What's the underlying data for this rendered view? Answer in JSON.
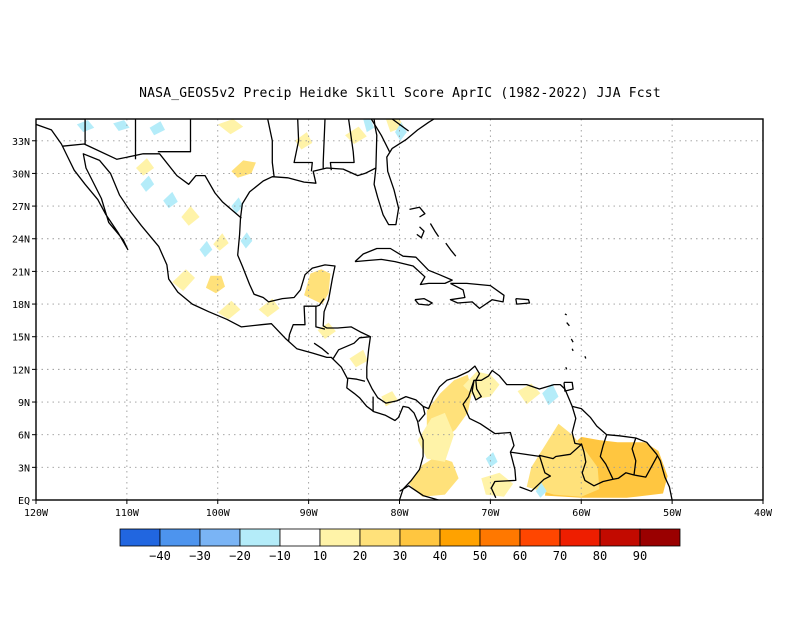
{
  "title": "NASA_GEOS5v2 Precip Heidke Skill Score AprIC (1982-2022) JJA Fcst",
  "map": {
    "lon_range": [
      -120,
      -40
    ],
    "lat_range": [
      0,
      35
    ],
    "x_ticks": [
      {
        "lon": -120,
        "label": "120W"
      },
      {
        "lon": -110,
        "label": "110W"
      },
      {
        "lon": -100,
        "label": "100W"
      },
      {
        "lon": -90,
        "label": "90W"
      },
      {
        "lon": -80,
        "label": "80W"
      },
      {
        "lon": -70,
        "label": "70W"
      },
      {
        "lon": -60,
        "label": "60W"
      },
      {
        "lon": -50,
        "label": "50W"
      },
      {
        "lon": -40,
        "label": "40W"
      }
    ],
    "y_ticks": [
      {
        "lat": 0,
        "label": "EQ"
      },
      {
        "lat": 3,
        "label": "3N"
      },
      {
        "lat": 6,
        "label": "6N"
      },
      {
        "lat": 9,
        "label": "9N"
      },
      {
        "lat": 12,
        "label": "12N"
      },
      {
        "lat": 15,
        "label": "15N"
      },
      {
        "lat": 18,
        "label": "18N"
      },
      {
        "lat": 21,
        "label": "21N"
      },
      {
        "lat": 24,
        "label": "24N"
      },
      {
        "lat": 27,
        "label": "27N"
      },
      {
        "lat": 30,
        "label": "30N"
      },
      {
        "lat": 33,
        "label": "33N"
      }
    ],
    "grid": true
  },
  "colorbar": {
    "colors": [
      "#2166e0",
      "#4d94ee",
      "#7ab4f5",
      "#b4ecf9",
      "#ffffff",
      "#fff3a8",
      "#ffe17a",
      "#ffc640",
      "#ffa200",
      "#ff7800",
      "#ff4600",
      "#ee1e00",
      "#c20a00",
      "#9a0000"
    ],
    "labels": [
      "-40",
      "-30",
      "-20",
      "-10",
      "10",
      "20",
      "30",
      "40",
      "50",
      "60",
      "70",
      "80",
      "90"
    ]
  },
  "skill_areas": [
    {
      "level": 40,
      "color": "#ff9a00",
      "pts": [
        [
          -58,
          1.5
        ],
        [
          -56,
          0.6
        ],
        [
          -53,
          0.8
        ],
        [
          -51.5,
          1.8
        ],
        [
          -51.8,
          3.2
        ],
        [
          -53,
          4.6
        ],
        [
          -55,
          5
        ],
        [
          -57,
          4.8
        ],
        [
          -58.5,
          3.5
        ]
      ]
    },
    {
      "level": 30,
      "color": "#ffc640",
      "pts": [
        [
          -64,
          0.4
        ],
        [
          -60,
          0.2
        ],
        [
          -55,
          0.2
        ],
        [
          -51,
          0.6
        ],
        [
          -50.5,
          2.2
        ],
        [
          -51.5,
          4.5
        ],
        [
          -53,
          5.3
        ],
        [
          -56,
          5.3
        ],
        [
          -58,
          5.5
        ],
        [
          -60,
          5.8
        ],
        [
          -62,
          4.2
        ],
        [
          -63.5,
          2.5
        ]
      ]
    },
    {
      "level": 20,
      "color": "#ffe17a",
      "pts": [
        [
          -66,
          1.2
        ],
        [
          -63,
          0.5
        ],
        [
          -60,
          0.3
        ],
        [
          -58,
          1
        ],
        [
          -58.2,
          3
        ],
        [
          -59.5,
          4.5
        ],
        [
          -61,
          6
        ],
        [
          -62.5,
          7
        ],
        [
          -64,
          5
        ],
        [
          -65.5,
          3
        ]
      ]
    },
    {
      "level": 20,
      "color": "#ffe17a",
      "pts": [
        [
          -77,
          8.2
        ],
        [
          -75.5,
          9.8
        ],
        [
          -74,
          11
        ],
        [
          -72.5,
          11.5
        ],
        [
          -72,
          10
        ],
        [
          -72.5,
          8
        ],
        [
          -73.8,
          6.5
        ],
        [
          -75.5,
          5.2
        ],
        [
          -77,
          6
        ]
      ]
    },
    {
      "level": 20,
      "color": "#ffe17a",
      "pts": [
        [
          -79,
          1.5
        ],
        [
          -77.5,
          0.3
        ],
        [
          -75,
          0.5
        ],
        [
          -73.5,
          2
        ],
        [
          -74.2,
          3.5
        ],
        [
          -76,
          4
        ],
        [
          -77.5,
          3.2
        ]
      ]
    },
    {
      "level": 20,
      "color": "#ffe17a",
      "pts": [
        [
          -90.5,
          18.8
        ],
        [
          -89.8,
          20.8
        ],
        [
          -88.6,
          21.2
        ],
        [
          -87.6,
          20.8
        ],
        [
          -87.8,
          19
        ],
        [
          -88.5,
          18
        ]
      ]
    },
    {
      "level": 20,
      "color": "#ffe17a",
      "pts": [
        [
          -101.3,
          19.5
        ],
        [
          -100.8,
          20.6
        ],
        [
          -99.6,
          20.6
        ],
        [
          -99.2,
          19.6
        ],
        [
          -100.2,
          19
        ]
      ]
    },
    {
      "level": 20,
      "color": "#ffe17a",
      "pts": [
        [
          -98.5,
          30.2
        ],
        [
          -97.2,
          31.2
        ],
        [
          -95.8,
          31
        ],
        [
          -96.3,
          30
        ],
        [
          -97.8,
          29.6
        ]
      ]
    },
    {
      "level": 10,
      "color": "#fff3a8",
      "pts": [
        [
          -73,
          10.5
        ],
        [
          -71.5,
          11.8
        ],
        [
          -70,
          11.5
        ],
        [
          -69,
          10.6
        ],
        [
          -70,
          9.5
        ],
        [
          -71.5,
          9.3
        ]
      ]
    },
    {
      "level": 10,
      "color": "#fff3a8",
      "pts": [
        [
          -78,
          5.5
        ],
        [
          -76.5,
          7.5
        ],
        [
          -75,
          8
        ],
        [
          -74,
          6
        ],
        [
          -75,
          3.5
        ],
        [
          -77,
          3.8
        ]
      ]
    },
    {
      "level": 10,
      "color": "#fff3a8",
      "pts": [
        [
          -71,
          2
        ],
        [
          -69,
          2.5
        ],
        [
          -67.5,
          1.5
        ],
        [
          -68.5,
          0.3
        ],
        [
          -70.5,
          0.5
        ]
      ]
    },
    {
      "level": 10,
      "color": "#fff3a8",
      "pts": [
        [
          -67,
          10
        ],
        [
          -65.5,
          10.7
        ],
        [
          -64.5,
          9.8
        ],
        [
          -66,
          8.8
        ]
      ]
    },
    {
      "level": 10,
      "color": "#fff3a8",
      "pts": [
        [
          -105,
          20
        ],
        [
          -103.5,
          21.2
        ],
        [
          -102.5,
          20.4
        ],
        [
          -103.8,
          19.2
        ]
      ]
    },
    {
      "level": 10,
      "color": "#fff3a8",
      "pts": [
        [
          -100,
          17.2
        ],
        [
          -98.5,
          18.3
        ],
        [
          -97.5,
          17.5
        ],
        [
          -98.8,
          16.6
        ]
      ]
    },
    {
      "level": 10,
      "color": "#fff3a8",
      "pts": [
        [
          -95.5,
          17.5
        ],
        [
          -94,
          18.5
        ],
        [
          -93.2,
          17.6
        ],
        [
          -94.5,
          16.8
        ]
      ]
    },
    {
      "level": 10,
      "color": "#fff3a8",
      "pts": [
        [
          -89,
          15.6
        ],
        [
          -87.8,
          16.3
        ],
        [
          -87,
          15.5
        ],
        [
          -88.2,
          14.8
        ]
      ]
    },
    {
      "level": 10,
      "color": "#fff3a8",
      "pts": [
        [
          -85.5,
          13
        ],
        [
          -84,
          13.8
        ],
        [
          -83.5,
          12.8
        ],
        [
          -84.8,
          12.2
        ]
      ]
    },
    {
      "level": 10,
      "color": "#fff3a8",
      "pts": [
        [
          -82,
          9.5
        ],
        [
          -80.8,
          10
        ],
        [
          -80.2,
          9.2
        ],
        [
          -81.5,
          8.6
        ]
      ]
    },
    {
      "level": 10,
      "color": "#fff3a8",
      "pts": [
        [
          -109,
          30.5
        ],
        [
          -107.8,
          31.4
        ],
        [
          -107,
          30.5
        ],
        [
          -108.2,
          29.8
        ]
      ]
    },
    {
      "level": 10,
      "color": "#fff3a8",
      "pts": [
        [
          -104,
          26
        ],
        [
          -103,
          27
        ],
        [
          -102,
          26
        ],
        [
          -103.2,
          25.2
        ]
      ]
    },
    {
      "level": 10,
      "color": "#fff3a8",
      "pts": [
        [
          -100.5,
          23.5
        ],
        [
          -99.5,
          24.5
        ],
        [
          -98.8,
          23.6
        ],
        [
          -99.8,
          22.9
        ]
      ]
    },
    {
      "level": 10,
      "color": "#fff3a8",
      "pts": [
        [
          -100,
          34.5
        ],
        [
          -98.3,
          35
        ],
        [
          -97.2,
          34.3
        ],
        [
          -98.6,
          33.6
        ]
      ]
    },
    {
      "level": 10,
      "color": "#fff3a8",
      "pts": [
        [
          -86,
          33.5
        ],
        [
          -84.5,
          34.3
        ],
        [
          -83.6,
          33.4
        ],
        [
          -85,
          32.7
        ]
      ]
    },
    {
      "level": 10,
      "color": "#fff3a8",
      "pts": [
        [
          -81.5,
          35
        ],
        [
          -80,
          35
        ],
        [
          -79.5,
          34.3
        ],
        [
          -81,
          33.8
        ]
      ]
    },
    {
      "level": 10,
      "color": "#fff3a8",
      "pts": [
        [
          -91.5,
          33
        ],
        [
          -90.2,
          33.8
        ],
        [
          -89.6,
          32.8
        ],
        [
          -90.8,
          32.2
        ]
      ]
    },
    {
      "level": -10,
      "color": "#b4ecf9",
      "pts": [
        [
          -115.5,
          34.5
        ],
        [
          -114.3,
          34.9
        ],
        [
          -113.6,
          34.2
        ],
        [
          -114.8,
          33.8
        ]
      ]
    },
    {
      "level": -10,
      "color": "#b4ecf9",
      "pts": [
        [
          -111.5,
          34.6
        ],
        [
          -110.3,
          34.9
        ],
        [
          -109.7,
          34.2
        ],
        [
          -110.9,
          33.9
        ]
      ]
    },
    {
      "level": -10,
      "color": "#b4ecf9",
      "pts": [
        [
          -107.5,
          34.2
        ],
        [
          -106.3,
          34.8
        ],
        [
          -105.8,
          34
        ],
        [
          -107,
          33.5
        ]
      ]
    },
    {
      "level": -10,
      "color": "#b4ecf9",
      "pts": [
        [
          -108.5,
          29
        ],
        [
          -107.6,
          29.8
        ],
        [
          -107,
          29
        ],
        [
          -107.9,
          28.3
        ]
      ]
    },
    {
      "level": -10,
      "color": "#b4ecf9",
      "pts": [
        [
          -106,
          27.5
        ],
        [
          -105,
          28.3
        ],
        [
          -104.4,
          27.4
        ],
        [
          -105.4,
          26.8
        ]
      ]
    },
    {
      "level": -10,
      "color": "#b4ecf9",
      "pts": [
        [
          -98.5,
          27
        ],
        [
          -97.7,
          27.8
        ],
        [
          -97.2,
          27
        ],
        [
          -98,
          26.3
        ]
      ]
    },
    {
      "level": -10,
      "color": "#b4ecf9",
      "pts": [
        [
          -102,
          23
        ],
        [
          -101.2,
          23.8
        ],
        [
          -100.6,
          23
        ],
        [
          -101.4,
          22.3
        ]
      ]
    },
    {
      "level": -10,
      "color": "#b4ecf9",
      "pts": [
        [
          -97.5,
          23.8
        ],
        [
          -96.8,
          24.6
        ],
        [
          -96.2,
          23.8
        ],
        [
          -96.9,
          23.1
        ]
      ]
    },
    {
      "level": -10,
      "color": "#b4ecf9",
      "pts": [
        [
          -80.5,
          33.8
        ],
        [
          -79.8,
          34.7
        ],
        [
          -79.2,
          33.8
        ],
        [
          -79.9,
          33
        ]
      ]
    },
    {
      "level": -10,
      "color": "#b4ecf9",
      "pts": [
        [
          -84,
          35
        ],
        [
          -83.2,
          35
        ],
        [
          -82.8,
          34.2
        ],
        [
          -83.6,
          33.8
        ]
      ]
    },
    {
      "level": -10,
      "color": "#b4ecf9",
      "pts": [
        [
          -64.3,
          9.8
        ],
        [
          -63.2,
          10.7
        ],
        [
          -62.5,
          9.5
        ],
        [
          -63.6,
          8.7
        ]
      ]
    },
    {
      "level": -10,
      "color": "#b4ecf9",
      "pts": [
        [
          -70.5,
          3.8
        ],
        [
          -69.7,
          4.4
        ],
        [
          -69.2,
          3.5
        ],
        [
          -70,
          3
        ]
      ]
    },
    {
      "level": -10,
      "color": "#b4ecf9",
      "pts": [
        [
          -65,
          0.8
        ],
        [
          -64.4,
          1.6
        ],
        [
          -63.8,
          0.8
        ],
        [
          -64.5,
          0.2
        ]
      ]
    }
  ]
}
